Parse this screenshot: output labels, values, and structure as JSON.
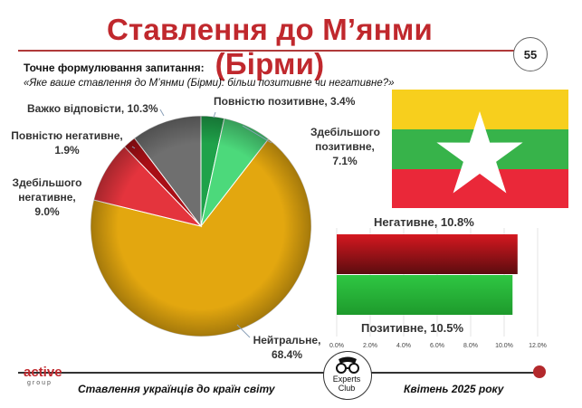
{
  "title": "Ставлення до М’янми (Бірми)",
  "page_number": "55",
  "question_label": "Точне формулювання запитання:",
  "question_text": "«Яке ваше ставлення до М’янми (Бірми): більш позитивне чи негативне?»",
  "pie_labels": {
    "full_positive": "Повністю позитивне, 3.4%",
    "mostly_positive_1": "Здебільшого",
    "mostly_positive_2": "позитивне,",
    "mostly_positive_3": "7.1%",
    "neutral_1": "Нейтральне,",
    "neutral_2": "68.4%",
    "mostly_negative_1": "Здебільшого",
    "mostly_negative_2": "негативне,",
    "mostly_negative_3": "9.0%",
    "full_negative_1": "Повністю негативне,",
    "full_negative_2": "1.9%",
    "hard_to_say": "Важко відповісти, 10.3%"
  },
  "bar_labels": {
    "negative": "Негативне, 10.8%",
    "positive": "Позитивне, 10.5%"
  },
  "footer": {
    "logo_main": "active",
    "logo_sub": "group",
    "left_text": "Ставлення українців до країн світу",
    "right_text": "Квітень 2025 року",
    "experts_1": "Experts",
    "experts_2": "Club"
  },
  "flag": {
    "top": "#f7cf1d",
    "middle": "#37b34a",
    "bottom": "#ea2839",
    "star": "#ffffff"
  },
  "chart_data": [
    {
      "type": "pie",
      "slices": [
        {
          "label": "Повністю позитивне",
          "value": 3.4,
          "color": "#1fa24a"
        },
        {
          "label": "Здебільшого позитивне",
          "value": 7.1,
          "color": "#4cd97b"
        },
        {
          "label": "Нейтральне",
          "value": 68.4,
          "color": "#e3a70f"
        },
        {
          "label": "Здебільшого негативне",
          "value": 9.0,
          "color": "#e4343d"
        },
        {
          "label": "Повністю негативне",
          "value": 1.9,
          "color": "#a80f16"
        },
        {
          "label": "Важко відповісти",
          "value": 10.3,
          "color": "#6f6f6f"
        }
      ]
    },
    {
      "type": "bar",
      "orientation": "horizontal",
      "categories": [
        "Негативне",
        "Позитивне"
      ],
      "values": [
        10.8,
        10.5
      ],
      "colors": [
        "#c0141b",
        "#2fbf3f"
      ],
      "xlim": [
        0,
        12
      ],
      "xticks": [
        "0.0%",
        "2.0%",
        "4.0%",
        "6.0%",
        "8.0%",
        "10.0%",
        "12.0%"
      ]
    }
  ]
}
